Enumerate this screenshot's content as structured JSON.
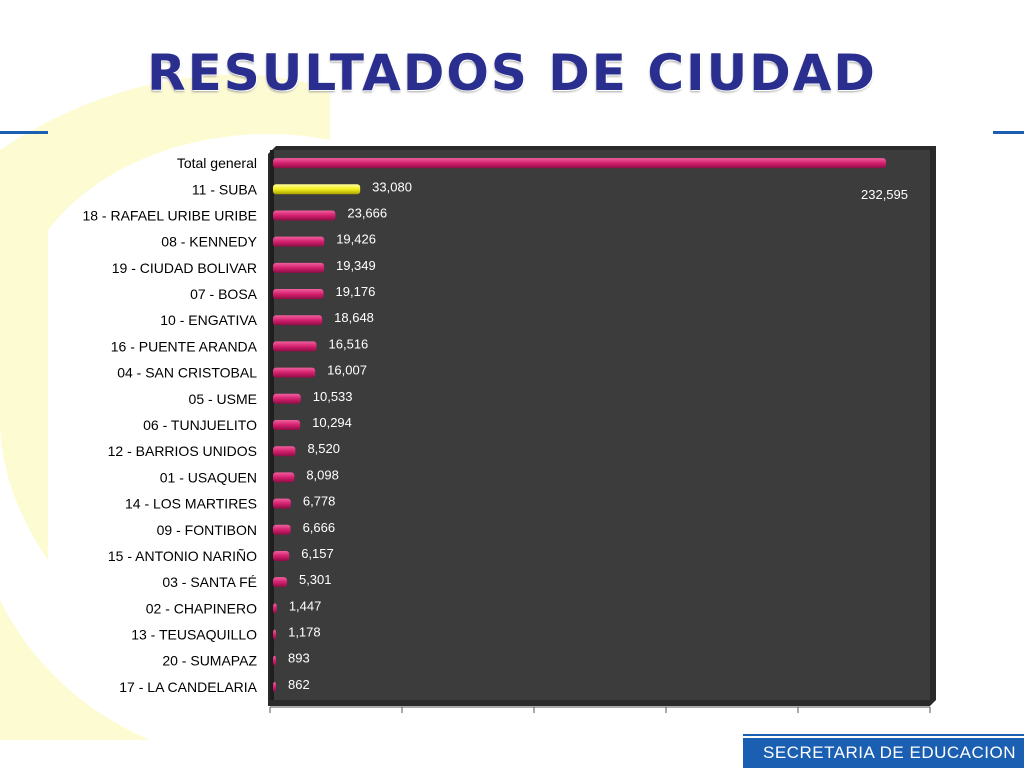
{
  "title": "RESULTADOS DE CIUDAD",
  "footer": {
    "text": "SECRETARIA DE EDUCACION"
  },
  "colors": {
    "bar": "#d4206e",
    "highlight": "#f2ee1e",
    "plot_bg": "#3c3c3c",
    "title": "#2a2f8f",
    "footer": "#1b5fb3"
  },
  "chart_data": {
    "type": "bar",
    "orientation": "horizontal",
    "title": "",
    "xlabel": "",
    "ylabel": "",
    "xlim": [
      0,
      250000
    ],
    "grid": false,
    "legend": "none",
    "highlight_category": "11 - SUBA",
    "categories": [
      "Total general",
      "11 - SUBA",
      "18 - RAFAEL URIBE URIBE",
      "08 - KENNEDY",
      "19 - CIUDAD BOLIVAR",
      "07 - BOSA",
      "10 - ENGATIVA",
      "16 - PUENTE ARANDA",
      "04 - SAN CRISTOBAL",
      "05 - USME",
      "06 - TUNJUELITO",
      "12 - BARRIOS UNIDOS",
      "01 - USAQUEN",
      "14 - LOS MARTIRES",
      "09 - FONTIBON",
      "15 - ANTONIO NARIÑO",
      "03 - SANTA FÉ",
      "02 - CHAPINERO",
      "13 - TEUSAQUILLO",
      "20 - SUMAPAZ",
      "17 - LA CANDELARIA"
    ],
    "values": [
      232595,
      33080,
      23666,
      19426,
      19349,
      19176,
      18648,
      16516,
      16007,
      10533,
      10294,
      8520,
      8098,
      6778,
      6666,
      6157,
      5301,
      1447,
      1178,
      893,
      862
    ],
    "value_labels": [
      "232,595",
      "33,080",
      "23,666",
      "19,426",
      "19,349",
      "19,176",
      "18,648",
      "16,516",
      "16,007",
      "10,533",
      "10,294",
      "8,520",
      "8,098",
      "6,778",
      "6,666",
      "6,157",
      "5,301",
      "1,447",
      "1,178",
      "893",
      "862"
    ]
  }
}
